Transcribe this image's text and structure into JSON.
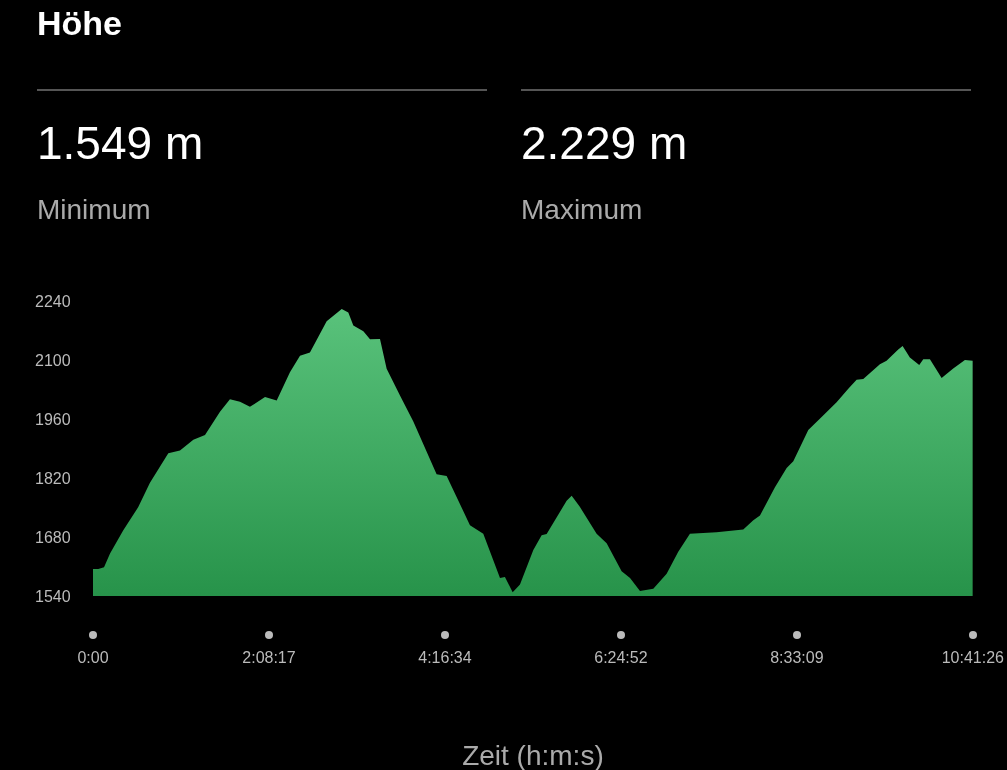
{
  "chart_data": {
    "type": "area",
    "title": "Höhe",
    "xlabel": "Zeit (h:m:s)",
    "annotations": [
      "1.549 m",
      "Minimum",
      "2.229 m",
      "Maximum"
    ],
    "xlim": [
      0,
      10.6906
    ],
    "xticks": [
      {
        "value": 0,
        "label": "0:00"
      },
      {
        "value": 2.1381,
        "label": "2:08:17"
      },
      {
        "value": 4.2761,
        "label": "4:16:34"
      },
      {
        "value": 6.4144,
        "label": "6:24:52"
      },
      {
        "value": 8.5525,
        "label": "8:33:09"
      },
      {
        "value": 10.6906,
        "label": "10:41:26"
      }
    ],
    "ylim": [
      1540,
      2240
    ],
    "yticks": [
      1540,
      1680,
      1820,
      1960,
      2100,
      2240
    ],
    "grid": false,
    "series": [
      {
        "color": "#30b35a",
        "x": [
          0,
          0.064,
          0.134,
          0.207,
          0.368,
          0.55,
          0.692,
          0.915,
          1.057,
          1.219,
          1.361,
          1.543,
          1.664,
          1.786,
          1.907,
          2.09,
          2.232,
          2.393,
          2.515,
          2.636,
          2.839,
          3.022,
          3.102,
          3.163,
          3.285,
          3.366,
          3.487,
          3.568,
          3.73,
          3.892,
          4.175,
          4.297,
          4.58,
          4.742,
          4.945,
          5.005,
          5.099,
          5.148,
          5.188,
          5.35,
          5.451,
          5.512,
          5.755,
          5.816,
          5.917,
          6.119,
          6.241,
          6.423,
          6.525,
          6.646,
          6.808,
          6.97,
          7.111,
          7.253,
          7.577,
          7.901,
          8.023,
          8.104,
          8.286,
          8.428,
          8.509,
          8.691,
          8.853,
          9.035,
          9.177,
          9.278,
          9.359,
          9.561,
          9.642,
          9.784,
          9.837,
          9.925,
          10.039,
          10.088,
          10.169,
          10.311,
          10.452,
          10.594,
          10.688
        ],
        "values": [
          1604,
          1604,
          1608,
          1641,
          1696,
          1751,
          1809,
          1879,
          1885,
          1911,
          1922,
          1977,
          2007,
          2001,
          1989,
          2012,
          2004,
          2071,
          2110,
          2118,
          2192,
          2221,
          2213,
          2182,
          2168,
          2149,
          2150,
          2079,
          2016,
          1954,
          1829,
          1825,
          1708,
          1688,
          1583,
          1585,
          1549,
          1559,
          1567,
          1649,
          1684,
          1687,
          1766,
          1778,
          1751,
          1688,
          1665,
          1599,
          1583,
          1552,
          1557,
          1593,
          1645,
          1688,
          1691,
          1698,
          1720,
          1731,
          1798,
          1844,
          1860,
          1934,
          1965,
          2000,
          2032,
          2053,
          2055,
          2090,
          2098,
          2125,
          2133,
          2106,
          2088,
          2102,
          2102,
          2057,
          2080,
          2100,
          2098
        ]
      }
    ]
  }
}
